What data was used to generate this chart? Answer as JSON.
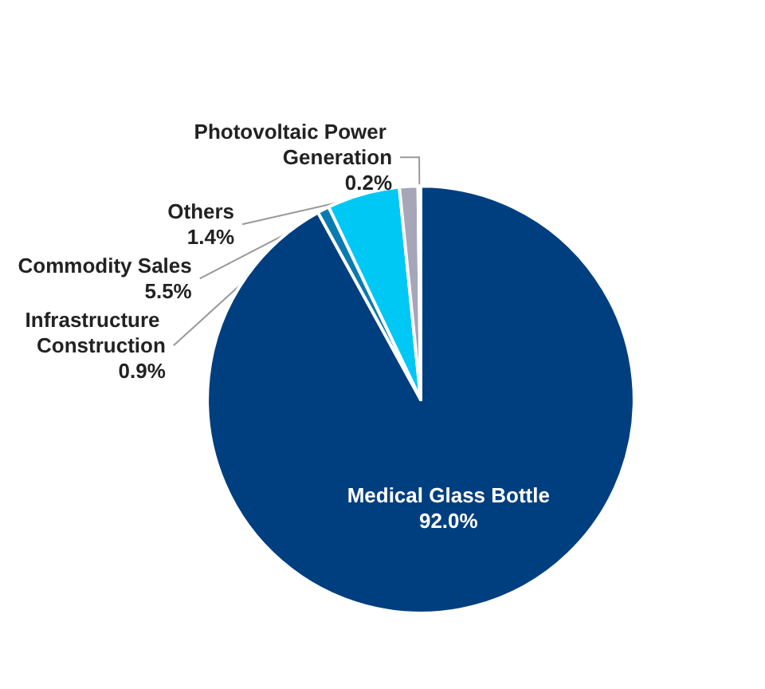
{
  "chart_data": {
    "type": "pie",
    "categories": [
      "Medical Glass Bottle",
      "Infrastructure Construction",
      "Commodity Sales",
      "Others",
      "Photovoltaic Power Generation"
    ],
    "values": [
      92.0,
      0.9,
      5.5,
      1.4,
      0.2
    ],
    "value_labels": [
      "92.0%",
      "0.9%",
      "5.5%",
      "1.4%",
      "0.2%"
    ],
    "colors": [
      "#003f7f",
      "#0a7bb0",
      "#00c8f5",
      "#a6a6b8",
      "#1c4f8c"
    ]
  }
}
